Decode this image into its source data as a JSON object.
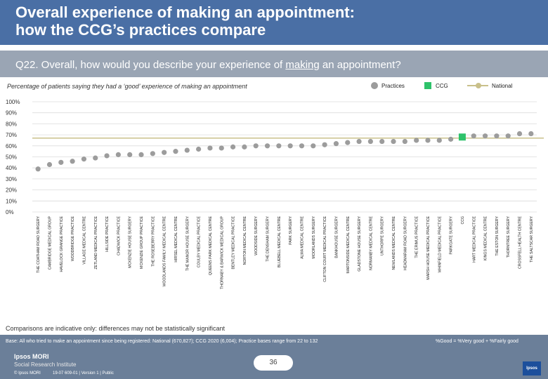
{
  "header": {
    "title": "Overall experience of making an appointment:\nhow the CCG’s practices compare"
  },
  "question": {
    "prefix": "Q22. Overall, how would you describe your experience of ",
    "underlined": "making",
    "suffix": " an appointment?"
  },
  "subtitle": "Percentage of patients saying they had a ‘good’ experience of making an appointment",
  "legend": {
    "practices": "Practices",
    "ccg": "CCG",
    "national": "National"
  },
  "colors": {
    "practice": "#9c9c9c",
    "ccg": "#2ec26a",
    "national": "#c9c08a",
    "grid": "#dcdcdc"
  },
  "chart_data": {
    "type": "scatter",
    "title": "Percentage of patients saying they had a ‘good’ experience of making an appointment",
    "ylim": [
      0,
      100
    ],
    "yticks": [
      "0%",
      "10%",
      "20%",
      "30%",
      "40%",
      "50%",
      "60%",
      "70%",
      "80%",
      "90%",
      "100%"
    ],
    "national": 67,
    "categories": [
      "THE COATHAM ROAD SURGERY",
      "CAMBRIDGE MEDICAL GROUP",
      "HAVELOCK GRANGE PRACTICE",
      "WOODBRIDGE PRACTICE",
      "VILLAGE MEDICAL CENTRE",
      "ZETLAND MEDICAL PRACTICE",
      "HILLSIDE PRACTICE",
      "CHADWICK PRACTICE",
      "MCKENZIE HOUSE SURGERY",
      "MCKENZIE GROUP PRACTICE",
      "THE ROSEBERRY PRACTICE",
      "WOODLANDS FAMILY MEDICAL CENTRE",
      "HIRSEL MEDICAL CENTRE",
      "THE MANOR HOUSE SURGERY",
      "COULBY MEDICAL PRACTICE",
      "QUEENS PARK MEDICAL CENTRE",
      "THORNABY & BARWICK MEDICAL GROUP",
      "BENTLEY MEDICAL PRACTICE",
      "NORTON MEDICAL CENTRE",
      "WOODSIDE SURGERY",
      "THE DENSHAM SURGERY",
      "BLUEBELL MEDICAL CENTRE",
      "PARK SURGERY",
      "ALMA MEDICAL CENTRE",
      "MOORLANDS SURGERY",
      "CLIFTON COURT MEDICAL PRACTICE",
      "BANKHOUSE SURGERY",
      "MARTONSIDE MEDICAL CENTRE",
      "GLADSTONE HOUSE SURGERY",
      "NORMANBY MEDICAL CENTRE",
      "UNTHORPE SURGERY",
      "NEWLANDS MEDICAL CENTRE",
      "HEADMARAM ROAD SURGERY",
      "THE ERIMUS PRACTICE",
      "MARSH HOUSE MEDICAL PRACTICE",
      "WHINFIELD MEDICAL PRACTICE",
      "PARKGATE SURGERY",
      "CCG",
      "HART MEDICAL PRACTICE",
      "KINGS MEDICAL CENTRE",
      "THE ESTON SURGERY",
      "THORNTREE SURGERY",
      "CROSSFELL HEALTH CENTRE",
      "THE SALTSCAR SURGERY"
    ],
    "values": [
      39,
      43,
      45,
      46,
      48,
      49,
      51,
      52,
      52,
      52,
      53,
      54,
      55,
      56,
      57,
      58,
      58,
      59,
      59,
      60,
      60,
      60,
      60,
      60,
      60,
      61,
      62,
      63,
      64,
      64,
      64,
      64,
      64,
      65,
      65,
      65,
      66,
      68,
      69,
      69,
      69,
      69,
      71,
      71
    ],
    "ccg_index": 37
  },
  "note": "Comparisons are indicative only: differences may not be statistically significant",
  "footer": {
    "base": "Base: All who tried to make an appointment since being registered: National (670,827); CCG 2020 (6,004); Practice bases range from 22 to 132",
    "good_note": "%Good = %Very good + %Fairly good",
    "brand": "Ipsos MORI",
    "brand_sub": "Social Research Institute",
    "copyright": "© Ipsos MORI",
    "job": "19-07 609-01 | Version 1 | Public",
    "page": "36",
    "logo": "Ipsos"
  }
}
